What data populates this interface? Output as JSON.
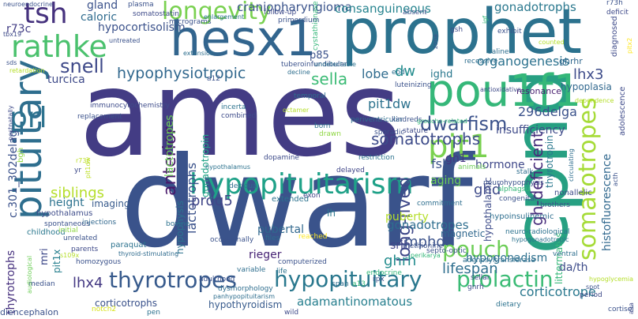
{
  "words": [
    {
      "text": "ames",
      "color": "#433c84"
    },
    {
      "text": "dwarf",
      "color": "#3a538b"
    },
    {
      "text": "prophet",
      "color": "#2c728e"
    },
    {
      "text": "cpnd",
      "color": "#27a082"
    },
    {
      "text": "hesx1",
      "color": "#32658e"
    },
    {
      "text": "pou1f1",
      "color": "#35b779"
    },
    {
      "text": "hypopituitarism",
      "color": "#1fa188"
    },
    {
      "text": "pituitary",
      "color": "#2e6e8e"
    },
    {
      "text": "pit1",
      "color": "#7ad151"
    },
    {
      "text": "rathke",
      "color": "#4ac16d"
    },
    {
      "text": "tsh",
      "color": "#46327e"
    },
    {
      "text": "longevity",
      "color": "#7ad151"
    },
    {
      "text": "somatotropes",
      "color": "#a5db36"
    },
    {
      "text": "prl",
      "color": "#2c728e"
    },
    {
      "text": "dwarfism",
      "color": "#3b528b"
    },
    {
      "text": "thyrotropes",
      "color": "#375a8c"
    },
    {
      "text": "hypopituitary",
      "color": "#2a788e"
    },
    {
      "text": "prolactin",
      "color": "#3bbb75"
    },
    {
      "text": "snell",
      "color": "#3e4989"
    },
    {
      "text": "hypophysiotropic",
      "color": "#31688e"
    },
    {
      "text": "somatotrophs",
      "color": "#3e4c8a"
    },
    {
      "text": "anterior",
      "color": "#48186a"
    },
    {
      "text": "pouch",
      "color": "#6ece58"
    },
    {
      "text": "lactotrophs",
      "color": "#3b528b"
    },
    {
      "text": "long-lived",
      "color": "#3f4889"
    },
    {
      "text": "gh-deficient",
      "color": "#472d7b"
    },
    {
      "text": "lifespan",
      "color": "#2e6e8e"
    },
    {
      "text": "craniopharyngioma",
      "color": "#3a538b"
    },
    {
      "text": "consanguineous",
      "color": "#25838e"
    },
    {
      "text": "gonadotrophs",
      "color": "#2a788e"
    },
    {
      "text": "organogenesis",
      "color": "#2c728e"
    },
    {
      "text": "sella",
      "color": "#3bbb75"
    },
    {
      "text": "lobe",
      "color": "#2f6b8e"
    },
    {
      "text": "dw",
      "color": "#228c8d"
    },
    {
      "text": "ighd",
      "color": "#2a788e"
    },
    {
      "text": "lhx3",
      "color": "#3e4c8a"
    },
    {
      "text": "296delga",
      "color": "#3b528b"
    },
    {
      "text": "siblings",
      "color": "#b5de2b"
    },
    {
      "text": "thyrotrophs",
      "color": "#46307e"
    },
    {
      "text": "histofluorescence",
      "color": "#31688e"
    },
    {
      "text": "mphd",
      "color": "#3b528b"
    },
    {
      "text": "gonadotropes",
      "color": "#2e6e8e"
    },
    {
      "text": "ghrh",
      "color": "#228c8d"
    },
    {
      "text": "lhx4",
      "color": "#443983"
    },
    {
      "text": "corticotrope",
      "color": "#2a788e"
    },
    {
      "text": "adamantinomatous",
      "color": "#277f8e"
    },
    {
      "text": "c.301_302delag",
      "color": "#3b528b"
    },
    {
      "text": "prdq5",
      "color": "#404688"
    },
    {
      "text": "pubertal",
      "color": "#31688e"
    },
    {
      "text": "fsh",
      "color": "#3b528b"
    },
    {
      "text": "ghd",
      "color": "#3e4a89"
    },
    {
      "text": "lactotropes",
      "color": "#6ece58"
    },
    {
      "text": "srih",
      "color": "#414487"
    },
    {
      "text": "puberty",
      "color": "#b5de2b"
    },
    {
      "text": "pit1dw",
      "color": "#bddf26"
    },
    {
      "text": "r73c",
      "color": "#2c728e"
    },
    {
      "text": "caloric",
      "color": "#433e85"
    },
    {
      "text": "gland",
      "color": "#2f6b8e"
    },
    {
      "text": "turcica",
      "color": "#3b528b"
    },
    {
      "text": "littermates",
      "color": "#3e4a89"
    },
    {
      "text": "hypophysis",
      "color": "#35b779"
    },
    {
      "text": "gonadotropin",
      "color": "#2c728e"
    },
    {
      "text": "thyrotropin",
      "color": "#20a386"
    },
    {
      "text": "hypothalamic",
      "color": "#2a788e"
    },
    {
      "text": "hypogonadism",
      "color": "#3e4c8a"
    },
    {
      "text": "hormone",
      "color": "#2d708e"
    },
    {
      "text": "aging",
      "color": "#3f4889"
    },
    {
      "text": "magnetic",
      "color": "#6ece58"
    },
    {
      "text": "rieger",
      "color": "#31688e"
    },
    {
      "text": "mri",
      "color": "#482475"
    },
    {
      "text": "height",
      "color": "#3e4989"
    },
    {
      "text": "pit1x",
      "color": "#2c728e"
    },
    {
      "text": "imaging",
      "color": "#277f8e"
    },
    {
      "text": "da/th",
      "color": "#375a8c"
    },
    {
      "text": "gh1",
      "color": "#3e4c8a"
    },
    {
      "text": "lh",
      "color": "#453781"
    },
    {
      "text": "hypoplasia",
      "color": "#2a788e"
    },
    {
      "text": "ghrhr",
      "color": "#31688e"
    },
    {
      "text": "resonance",
      "color": "#31688e"
    },
    {
      "text": "bgh",
      "color": "#481f70"
    },
    {
      "text": "hypothyroidism",
      "color": "#8fd744"
    },
    {
      "text": "corticotrophs",
      "color": "#375a8c"
    },
    {
      "text": "extended",
      "color": "#3b528b"
    },
    {
      "text": "hypothalamus",
      "color": "#2c728e"
    },
    {
      "text": "spontaneous",
      "color": "#3e4c8a"
    },
    {
      "text": "childhood",
      "color": "#3b528b"
    },
    {
      "text": "diencephalon",
      "color": "#2a788e"
    },
    {
      "text": "paraquat",
      "color": "#3b528b"
    },
    {
      "text": "thyroid-stimulating",
      "color": "#2c728e"
    },
    {
      "text": "immunocytochemistry",
      "color": "#2f6b8e"
    },
    {
      "text": "replacement",
      "color": "#3e4c8a"
    },
    {
      "text": "incerta",
      "color": "#3b528b"
    },
    {
      "text": "combined",
      "color": "#2c728e"
    },
    {
      "text": "dopamine",
      "color": "#3e4c8a"
    },
    {
      "text": "restriction",
      "color": "#3e4c8a"
    },
    {
      "text": "delayed",
      "color": "#2c728e"
    },
    {
      "text": "exon",
      "color": "#404688"
    },
    {
      "text": "injections",
      "color": "#414487"
    },
    {
      "text": "bovine",
      "color": "#31688e"
    },
    {
      "text": "neuro-radiological",
      "color": "#2c728e"
    },
    {
      "text": "hypogonadotropic",
      "color": "#2c728e"
    },
    {
      "text": "hypoinsulinemic",
      "color": "#2c728e"
    },
    {
      "text": "adenosyltransferase",
      "color": "#2e6e8e"
    },
    {
      "text": "methionine",
      "color": "#2e6e8e"
    },
    {
      "text": "septo-optic",
      "color": "#3b528b"
    },
    {
      "text": "perikarya",
      "color": "#3b528b"
    },
    {
      "text": "commitment",
      "color": "#35b779"
    },
    {
      "text": "brothers",
      "color": "#2e6e8e"
    },
    {
      "text": "alphagsu",
      "color": "#3b528b"
    },
    {
      "text": "congenital",
      "color": "#35b779"
    },
    {
      "text": "nonallelic",
      "color": "#3b528b"
    },
    {
      "text": "stalk",
      "color": "#3e4a89"
    },
    {
      "text": "neurohypophysis",
      "color": "#2e6e8e"
    },
    {
      "text": "gnrh",
      "color": "#3b528b"
    },
    {
      "text": "rpx",
      "color": "#3e4a89"
    },
    {
      "text": "sellar",
      "color": "#3b528b"
    },
    {
      "text": "ventral",
      "color": "#3e4a89"
    },
    {
      "text": "period",
      "color": "#2e6e8e"
    },
    {
      "text": "dietary",
      "color": "#3e4a89"
    },
    {
      "text": "cortisol",
      "color": "#2c728e"
    },
    {
      "text": "span",
      "color": "#3b528b"
    },
    {
      "text": "wild",
      "color": "#2e6e8e"
    },
    {
      "text": "pen",
      "color": "#3e4a89"
    },
    {
      "text": "panhypopituitarism",
      "color": "#2c728e"
    },
    {
      "text": "dysmorphology",
      "color": "#2e6e8e"
    },
    {
      "text": "adulthood",
      "color": "#2e6e8e"
    },
    {
      "text": "variable",
      "color": "#3b528b"
    },
    {
      "text": "computerized",
      "color": "#2e6e8e"
    },
    {
      "text": "life",
      "color": "#3b528b"
    },
    {
      "text": "a13",
      "color": "#2c728e"
    },
    {
      "text": "endocrine",
      "color": "#35b779"
    },
    {
      "text": "notch2",
      "color": "#35b779"
    },
    {
      "text": "median",
      "color": "#d8e219"
    },
    {
      "text": "parents",
      "color": "#3b528b"
    },
    {
      "text": "homozygous",
      "color": "#3e4a89"
    },
    {
      "text": "initial",
      "color": "#3b528b"
    },
    {
      "text": "unrelated",
      "color": "#8fd744"
    },
    {
      "text": "s109x",
      "color": "#3b528b"
    },
    {
      "text": "audiological",
      "color": "#b5de2b"
    },
    {
      "text": "occasionally",
      "color": "#6ece58"
    },
    {
      "text": "files",
      "color": "#3b528b"
    },
    {
      "text": "reached",
      "color": "#2e6e8e"
    },
    {
      "text": "decidua",
      "color": "#fde725"
    },
    {
      "text": "hypothalamus",
      "color": "#2e6e8e"
    },
    {
      "text": "periventricular",
      "color": "#2c728e"
    },
    {
      "text": "kindreds",
      "color": "#2e6e8e"
    },
    {
      "text": "born",
      "color": "#3b528b"
    },
    {
      "text": "drawn",
      "color": "#2c728e"
    },
    {
      "text": "sporadic",
      "color": "#8fd744"
    },
    {
      "text": "stature",
      "color": "#3b528b"
    },
    {
      "text": "animals",
      "color": "#3e4a89"
    },
    {
      "text": "groucho-related",
      "color": "#6ece58"
    },
    {
      "text": "octamer",
      "color": "#35b779"
    },
    {
      "text": "temporal",
      "color": "#b5de2b"
    },
    {
      "text": "a12",
      "color": "#2e6e8e"
    },
    {
      "text": "luteinizing",
      "color": "#3b528b"
    },
    {
      "text": "eod",
      "color": "#3b528b"
    },
    {
      "text": "antioxidative",
      "color": "#2e6e8e"
    },
    {
      "text": "p85",
      "color": "#3e4a89"
    },
    {
      "text": "tuberoinfundibular",
      "color": "#3b528b"
    },
    {
      "text": "decline",
      "color": "#3b528b"
    },
    {
      "text": "extension",
      "color": "#2e6e8e"
    },
    {
      "text": "undetectable",
      "color": "#2e6e8e"
    },
    {
      "text": "cystathionase",
      "color": "#2c728e"
    },
    {
      "text": "primordium",
      "color": "#35b779"
    },
    {
      "text": "follow-up",
      "color": "#3b528b"
    },
    {
      "text": "micrograms",
      "color": "#3e4a89"
    },
    {
      "text": "enlargement",
      "color": "#3b528b"
    },
    {
      "text": "somatostatin",
      "color": "#2c728e"
    },
    {
      "text": "plasma",
      "color": "#3e4a89"
    },
    {
      "text": "absent",
      "color": "#3b528b"
    },
    {
      "text": "igf",
      "color": "#3b528b"
    },
    {
      "text": "r73h",
      "color": "#35b779"
    },
    {
      "text": "deficit",
      "color": "#3b528b"
    },
    {
      "text": "exhibit",
      "color": "#3e4a89"
    },
    {
      "text": "gsh",
      "color": "#3b528b"
    },
    {
      "text": "zona",
      "color": "#3e4a89"
    },
    {
      "text": "saline",
      "color": "#3b528b"
    },
    {
      "text": "counted",
      "color": "#2e6e8e"
    },
    {
      "text": "diagnosed",
      "color": "#b5de2b"
    },
    {
      "text": "recessive",
      "color": "#3e4a89"
    },
    {
      "text": "pitx2",
      "color": "#2e6e8e"
    },
    {
      "text": "dependence",
      "color": "#fde725"
    },
    {
      "text": "adolescence",
      "color": "#b5de2b"
    },
    {
      "text": "insufficiency",
      "color": "#3e4a89"
    },
    {
      "text": "acth",
      "color": "#3e4a89"
    },
    {
      "text": "circulating",
      "color": "#3b528b"
    },
    {
      "text": "neuroendocrine",
      "color": "#2e6e8e"
    },
    {
      "text": "tbx19",
      "color": "#3b528b"
    },
    {
      "text": "untreated",
      "color": "#3e4a89"
    },
    {
      "text": "sds",
      "color": "#3b528b"
    },
    {
      "text": "retardation",
      "color": "#3b528b"
    },
    {
      "text": "postnatally",
      "color": "#b5de2b"
    },
    {
      "text": "hypocortisolism",
      "color": "#3e4a89"
    },
    {
      "text": "yr",
      "color": "#3b528b"
    },
    {
      "text": "149delga",
      "color": "#3e4a89"
    },
    {
      "text": "hypoglycemia",
      "color": "#3b528b"
    },
    {
      "text": "spot",
      "color": "#b5de2b"
    },
    {
      "text": "a9a",
      "color": "#3b528b"
    },
    {
      "text": "deceleration",
      "color": "#3e4a89"
    },
    {
      "text": "cystathionase",
      "color": "#2c728e"
    }
  ]
}
